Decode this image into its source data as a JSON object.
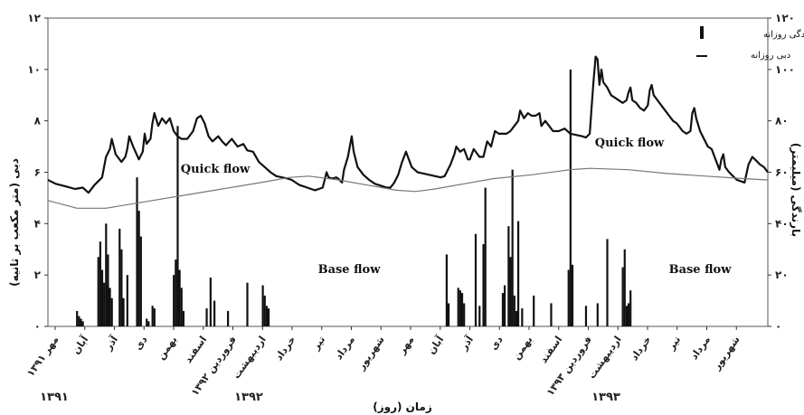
{
  "chart_data": {
    "type": "line",
    "xlabel": "زمان (روز)",
    "ylabel_left": "دبی (متر مکعب بر ثانیه)",
    "ylabel_right": "بارندگی (میلیمتر)",
    "ylim_left": [
      0,
      12
    ],
    "ylim_right": [
      0,
      120
    ],
    "yticks_left": [
      "۰",
      "۲",
      "۴",
      "۶",
      "۸",
      "۱۰",
      "۱۲"
    ],
    "yticks_right": [
      "۰",
      "۲۰",
      "۴۰",
      "۶۰",
      "۸۰",
      "۱۰۰",
      "۱۲۰"
    ],
    "x_range_days": [
      0,
      700
    ],
    "months": [
      "مهر ۱۳۹۱",
      "آبان",
      "آذر",
      "دی",
      "بهمن",
      "اسفند",
      "فروردین ۱۳۹۲",
      "اردیبهشت",
      "خرداد",
      "تیر",
      "مرداد",
      "شهریور",
      "مهر",
      "آبان",
      "آذر",
      "دی",
      "بهمن",
      "اسفند",
      "فروردین ۱۳۹۳",
      "اردیبهشت",
      "خرداد",
      "تیر",
      "مرداد",
      "شهریور"
    ],
    "years": [
      "۱۳۹۱",
      "۱۳۹۲",
      "۱۳۹۳"
    ],
    "legend": [
      {
        "label": "بارندگی روزانه",
        "type": "bar"
      },
      {
        "label": "دبی روزانه",
        "type": "line"
      }
    ],
    "legend_position": "top-right",
    "annotations": [
      "Quick flow",
      "Base flow",
      "Quick flow",
      "Base flow"
    ],
    "series": [
      {
        "name": "دبی روزانه",
        "axis": "left",
        "points": [
          [
            0,
            5.7
          ],
          [
            8,
            5.55
          ],
          [
            18,
            5.45
          ],
          [
            28,
            5.35
          ],
          [
            36,
            5.4
          ],
          [
            42,
            5.2
          ],
          [
            48,
            5.5
          ],
          [
            56,
            5.8
          ],
          [
            60,
            6.6
          ],
          [
            64,
            6.9
          ],
          [
            66,
            7.3
          ],
          [
            70,
            6.7
          ],
          [
            76,
            6.4
          ],
          [
            80,
            6.6
          ],
          [
            82,
            6.9
          ],
          [
            84,
            7.4
          ],
          [
            88,
            7.0
          ],
          [
            94,
            6.5
          ],
          [
            98,
            6.8
          ],
          [
            100,
            7.5
          ],
          [
            102,
            7.1
          ],
          [
            106,
            7.3
          ],
          [
            108,
            7.9
          ],
          [
            110,
            8.3
          ],
          [
            114,
            7.8
          ],
          [
            118,
            8.1
          ],
          [
            122,
            7.9
          ],
          [
            126,
            8.1
          ],
          [
            130,
            7.6
          ],
          [
            134,
            7.4
          ],
          [
            138,
            7.3
          ],
          [
            144,
            7.3
          ],
          [
            150,
            7.6
          ],
          [
            154,
            8.1
          ],
          [
            158,
            8.2
          ],
          [
            162,
            7.9
          ],
          [
            166,
            7.4
          ],
          [
            170,
            7.2
          ],
          [
            176,
            7.4
          ],
          [
            180,
            7.2
          ],
          [
            184,
            7.05
          ],
          [
            190,
            7.3
          ],
          [
            196,
            7.0
          ],
          [
            202,
            7.1
          ],
          [
            206,
            6.85
          ],
          [
            212,
            6.8
          ],
          [
            218,
            6.4
          ],
          [
            224,
            6.2
          ],
          [
            230,
            6.0
          ],
          [
            236,
            5.85
          ],
          [
            242,
            5.8
          ],
          [
            248,
            5.75
          ],
          [
            252,
            5.7
          ],
          [
            256,
            5.6
          ],
          [
            260,
            5.5
          ],
          [
            264,
            5.45
          ],
          [
            268,
            5.4
          ],
          [
            272,
            5.35
          ],
          [
            276,
            5.3
          ],
          [
            280,
            5.35
          ],
          [
            284,
            5.4
          ],
          [
            286,
            5.7
          ],
          [
            288,
            6.0
          ],
          [
            290,
            5.8
          ],
          [
            294,
            5.75
          ],
          [
            298,
            5.8
          ],
          [
            300,
            5.75
          ],
          [
            304,
            5.6
          ],
          [
            306,
            6.1
          ],
          [
            310,
            6.6
          ],
          [
            314,
            7.4
          ],
          [
            316,
            6.8
          ],
          [
            320,
            6.2
          ],
          [
            326,
            5.9
          ],
          [
            332,
            5.7
          ],
          [
            338,
            5.55
          ],
          [
            342,
            5.5
          ],
          [
            346,
            5.45
          ],
          [
            350,
            5.4
          ],
          [
            354,
            5.4
          ],
          [
            358,
            5.6
          ],
          [
            362,
            5.9
          ],
          [
            366,
            6.4
          ],
          [
            370,
            6.8
          ],
          [
            372,
            6.6
          ],
          [
            376,
            6.2
          ],
          [
            382,
            6.0
          ],
          [
            388,
            5.95
          ],
          [
            394,
            5.9
          ],
          [
            400,
            5.85
          ],
          [
            406,
            5.8
          ],
          [
            410,
            5.85
          ],
          [
            416,
            6.3
          ],
          [
            420,
            6.7
          ],
          [
            422,
            7.0
          ],
          [
            426,
            6.8
          ],
          [
            430,
            6.9
          ],
          [
            434,
            6.5
          ],
          [
            436,
            6.5
          ],
          [
            440,
            6.9
          ],
          [
            446,
            6.6
          ],
          [
            450,
            6.6
          ],
          [
            454,
            7.2
          ],
          [
            458,
            7.0
          ],
          [
            462,
            7.6
          ],
          [
            466,
            7.5
          ],
          [
            470,
            7.5
          ],
          [
            474,
            7.5
          ],
          [
            478,
            7.6
          ],
          [
            482,
            7.8
          ],
          [
            486,
            8.0
          ],
          [
            488,
            8.4
          ],
          [
            492,
            8.1
          ],
          [
            496,
            8.3
          ],
          [
            500,
            8.2
          ],
          [
            504,
            8.2
          ],
          [
            508,
            8.3
          ],
          [
            510,
            7.8
          ],
          [
            514,
            8.0
          ],
          [
            518,
            7.8
          ],
          [
            522,
            7.6
          ],
          [
            528,
            7.6
          ],
          [
            534,
            7.7
          ],
          [
            540,
            7.5
          ],
          [
            546,
            7.45
          ],
          [
            552,
            7.4
          ],
          [
            556,
            7.35
          ],
          [
            560,
            7.5
          ],
          [
            562,
            8.6
          ],
          [
            564,
            9.6
          ],
          [
            566,
            10.5
          ],
          [
            568,
            10.4
          ],
          [
            570,
            9.4
          ],
          [
            572,
            10.0
          ],
          [
            574,
            9.5
          ],
          [
            578,
            9.3
          ],
          [
            582,
            9.0
          ],
          [
            586,
            8.9
          ],
          [
            590,
            8.8
          ],
          [
            594,
            8.7
          ],
          [
            598,
            8.8
          ],
          [
            600,
            9.1
          ],
          [
            602,
            9.3
          ],
          [
            604,
            8.8
          ],
          [
            608,
            8.7
          ],
          [
            612,
            8.5
          ],
          [
            616,
            8.4
          ],
          [
            620,
            8.6
          ],
          [
            622,
            9.2
          ],
          [
            624,
            9.4
          ],
          [
            626,
            9.0
          ],
          [
            630,
            8.8
          ],
          [
            634,
            8.6
          ],
          [
            638,
            8.4
          ],
          [
            642,
            8.2
          ],
          [
            646,
            8.0
          ],
          [
            650,
            7.9
          ],
          [
            656,
            7.6
          ],
          [
            660,
            7.5
          ],
          [
            664,
            7.6
          ],
          [
            666,
            8.3
          ],
          [
            668,
            8.5
          ],
          [
            670,
            8.1
          ],
          [
            674,
            7.6
          ],
          [
            678,
            7.3
          ],
          [
            682,
            7.0
          ],
          [
            686,
            6.9
          ],
          [
            690,
            6.5
          ],
          [
            694,
            6.1
          ],
          [
            696,
            6.5
          ],
          [
            698,
            6.7
          ],
          [
            700,
            6.2
          ],
          [
            704,
            6.0
          ],
          [
            708,
            5.85
          ],
          [
            712,
            5.7
          ],
          [
            716,
            5.65
          ],
          [
            720,
            5.6
          ],
          [
            724,
            6.3
          ],
          [
            728,
            6.6
          ],
          [
            732,
            6.45
          ],
          [
            736,
            6.3
          ],
          [
            740,
            6.2
          ],
          [
            744,
            6.0
          ]
        ]
      },
      {
        "name": "Base flow",
        "axis": "left",
        "points": [
          [
            0,
            4.9
          ],
          [
            30,
            4.6
          ],
          [
            60,
            4.6
          ],
          [
            100,
            4.85
          ],
          [
            140,
            5.1
          ],
          [
            180,
            5.35
          ],
          [
            220,
            5.6
          ],
          [
            250,
            5.8
          ],
          [
            270,
            5.85
          ],
          [
            300,
            5.7
          ],
          [
            330,
            5.5
          ],
          [
            360,
            5.3
          ],
          [
            380,
            5.25
          ],
          [
            400,
            5.35
          ],
          [
            430,
            5.55
          ],
          [
            460,
            5.75
          ],
          [
            500,
            5.9
          ],
          [
            540,
            6.1
          ],
          [
            560,
            6.15
          ],
          [
            600,
            6.1
          ],
          [
            640,
            5.95
          ],
          [
            680,
            5.85
          ],
          [
            720,
            5.75
          ],
          [
            744,
            5.7
          ]
        ]
      },
      {
        "name": "بارندگی روزانه",
        "axis": "right",
        "type": "bar",
        "points": [
          [
            30,
            6
          ],
          [
            32,
            4
          ],
          [
            34,
            3
          ],
          [
            36,
            2
          ],
          [
            52,
            27
          ],
          [
            54,
            33
          ],
          [
            56,
            22
          ],
          [
            58,
            17
          ],
          [
            60,
            40
          ],
          [
            61,
            16
          ],
          [
            62,
            28
          ],
          [
            64,
            15
          ],
          [
            66,
            11
          ],
          [
            74,
            38
          ],
          [
            76,
            30
          ],
          [
            78,
            11
          ],
          [
            82,
            20
          ],
          [
            92,
            58
          ],
          [
            94,
            45
          ],
          [
            96,
            35
          ],
          [
            102,
            3
          ],
          [
            104,
            2
          ],
          [
            108,
            8
          ],
          [
            110,
            7
          ],
          [
            130,
            20
          ],
          [
            132,
            26
          ],
          [
            134,
            78
          ],
          [
            136,
            22
          ],
          [
            138,
            15
          ],
          [
            140,
            6
          ],
          [
            164,
            7
          ],
          [
            168,
            19
          ],
          [
            172,
            10
          ],
          [
            186,
            6
          ],
          [
            206,
            17
          ],
          [
            222,
            16
          ],
          [
            224,
            12
          ],
          [
            226,
            8
          ],
          [
            228,
            7
          ],
          [
            412,
            28
          ],
          [
            414,
            9
          ],
          [
            424,
            15
          ],
          [
            426,
            14
          ],
          [
            428,
            13
          ],
          [
            430,
            9
          ],
          [
            442,
            36
          ],
          [
            446,
            8
          ],
          [
            450,
            32
          ],
          [
            452,
            54
          ],
          [
            470,
            13
          ],
          [
            472,
            16
          ],
          [
            476,
            39
          ],
          [
            478,
            27
          ],
          [
            480,
            61
          ],
          [
            482,
            12
          ],
          [
            484,
            6
          ],
          [
            486,
            41
          ],
          [
            490,
            7
          ],
          [
            502,
            12
          ],
          [
            520,
            9
          ],
          [
            538,
            22
          ],
          [
            540,
            100
          ],
          [
            542,
            24
          ],
          [
            556,
            8
          ],
          [
            568,
            9
          ],
          [
            578,
            34
          ],
          [
            594,
            23
          ],
          [
            596,
            30
          ],
          [
            598,
            8
          ],
          [
            600,
            9
          ],
          [
            602,
            14
          ]
        ]
      }
    ]
  }
}
